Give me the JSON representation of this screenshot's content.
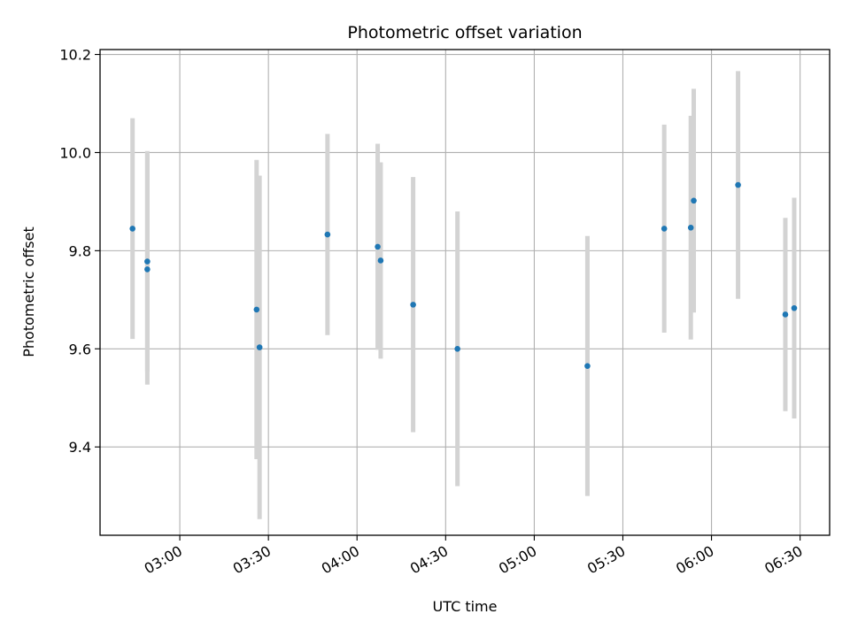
{
  "chart_data": {
    "type": "scatter",
    "title": "Photometric offset variation",
    "xlabel": "UTC time",
    "ylabel": "Photometric offset",
    "x_axis_kind": "time (HH:MM UTC)",
    "xlim": [
      "02:33",
      "06:40"
    ],
    "ylim": [
      9.22,
      10.21
    ],
    "x_ticks": [
      "03:00",
      "03:30",
      "04:00",
      "04:30",
      "05:00",
      "05:30",
      "06:00",
      "06:30"
    ],
    "y_ticks": [
      9.4,
      9.6,
      9.8,
      10.0,
      10.2
    ],
    "y_tick_labels": [
      "9.4",
      "9.6",
      "9.8",
      "10.0",
      "10.2"
    ],
    "grid": true,
    "series": [
      {
        "marker_color": "#1f77b4",
        "errorbar_color": "#d3d3d3",
        "points": [
          {
            "t": "02:44",
            "y": 9.845,
            "err": 0.225
          },
          {
            "t": "02:49",
            "y": 9.778,
            "err": 0.225
          },
          {
            "t": "02:49",
            "y": 9.762,
            "err": 0.235
          },
          {
            "t": "03:26",
            "y": 9.68,
            "err": 0.305
          },
          {
            "t": "03:27",
            "y": 9.603,
            "err": 0.35
          },
          {
            "t": "03:50",
            "y": 9.833,
            "err": 0.205
          },
          {
            "t": "04:07",
            "y": 9.808,
            "err": 0.21
          },
          {
            "t": "04:08",
            "y": 9.78,
            "err": 0.2
          },
          {
            "t": "04:19",
            "y": 9.69,
            "err": 0.26
          },
          {
            "t": "04:34",
            "y": 9.6,
            "err": 0.28
          },
          {
            "t": "05:18",
            "y": 9.565,
            "err": 0.265
          },
          {
            "t": "05:44",
            "y": 9.845,
            "err": 0.212
          },
          {
            "t": "05:53",
            "y": 9.847,
            "err": 0.228
          },
          {
            "t": "05:54",
            "y": 9.902,
            "err": 0.228
          },
          {
            "t": "06:09",
            "y": 9.934,
            "err": 0.232
          },
          {
            "t": "06:25",
            "y": 9.67,
            "err": 0.197
          },
          {
            "t": "06:28",
            "y": 9.683,
            "err": 0.225
          }
        ]
      }
    ]
  }
}
